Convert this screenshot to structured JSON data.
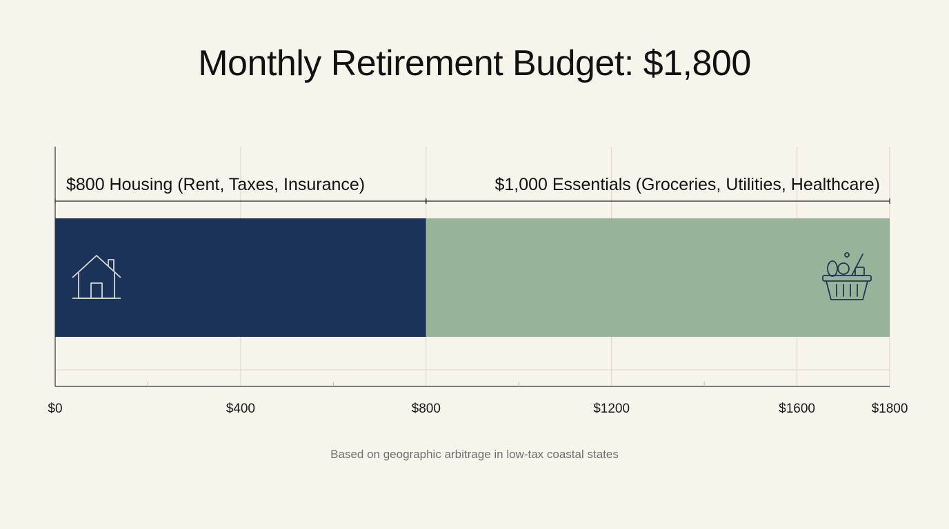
{
  "chart_data": {
    "type": "bar",
    "orientation": "horizontal-stacked",
    "title": "Monthly Retirement Budget: $1,800",
    "xlim": [
      0,
      1800
    ],
    "x_ticks": [
      0,
      400,
      800,
      1200,
      1600,
      1800
    ],
    "x_tick_labels": [
      "$0",
      "$400",
      "$800",
      "$1200",
      "$1600",
      "$1800"
    ],
    "grid": true,
    "segments": [
      {
        "value": 800,
        "label": "$800 Housing (Rent, Taxes, Insurance)",
        "color": "#1b3358",
        "icon": "house-icon"
      },
      {
        "value": 1000,
        "label": "$1,000 Essentials (Groceries, Utilities, Healthcare)",
        "color": "#97b49b",
        "icon": "grocery-basket-icon"
      }
    ],
    "footnote": "Based on geographic arbitrage in low-tax coastal states"
  }
}
